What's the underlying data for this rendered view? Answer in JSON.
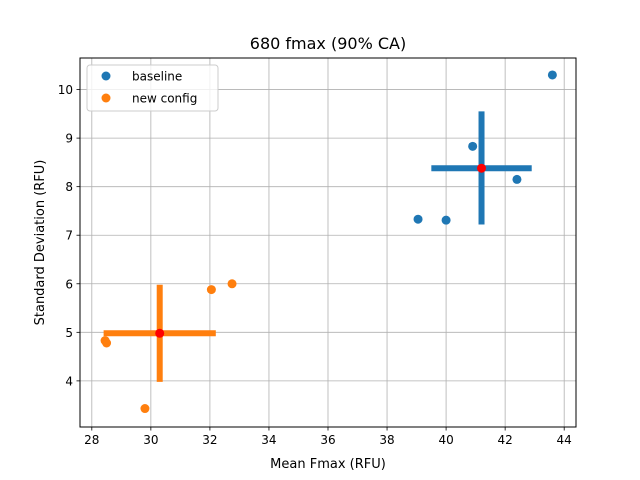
{
  "chart_data": {
    "type": "scatter",
    "title": "680 fmax (90% CA)",
    "xlabel": "Mean Fmax (RFU)",
    "ylabel": "Standard Deviation (RFU)",
    "xlim": [
      27.6,
      44.4
    ],
    "ylim": [
      3.05,
      10.65
    ],
    "xticks": [
      28,
      30,
      32,
      34,
      36,
      38,
      40,
      42,
      44
    ],
    "yticks": [
      4,
      5,
      6,
      7,
      8,
      9,
      10
    ],
    "grid": true,
    "legend_position": "top-left",
    "series": [
      {
        "name": "baseline",
        "color": "#1f77b4",
        "points": [
          {
            "x": 39.05,
            "y": 7.33
          },
          {
            "x": 40.0,
            "y": 7.31
          },
          {
            "x": 40.9,
            "y": 8.83
          },
          {
            "x": 42.4,
            "y": 8.15
          },
          {
            "x": 43.6,
            "y": 10.3
          }
        ],
        "error_cross": {
          "center": {
            "x": 41.2,
            "y": 8.38
          },
          "x_range": [
            39.5,
            42.9
          ],
          "y_range": [
            7.22,
            9.55
          ]
        }
      },
      {
        "name": "new config",
        "color": "#ff7f0e",
        "points": [
          {
            "x": 28.45,
            "y": 4.83
          },
          {
            "x": 28.5,
            "y": 4.78
          },
          {
            "x": 29.8,
            "y": 3.43
          },
          {
            "x": 32.05,
            "y": 5.88
          },
          {
            "x": 32.75,
            "y": 6.0
          }
        ],
        "error_cross": {
          "center": {
            "x": 30.3,
            "y": 4.98
          },
          "x_range": [
            28.4,
            32.2
          ],
          "y_range": [
            3.98,
            5.98
          ]
        }
      }
    ],
    "mean_marker_color": "#ff0000"
  }
}
